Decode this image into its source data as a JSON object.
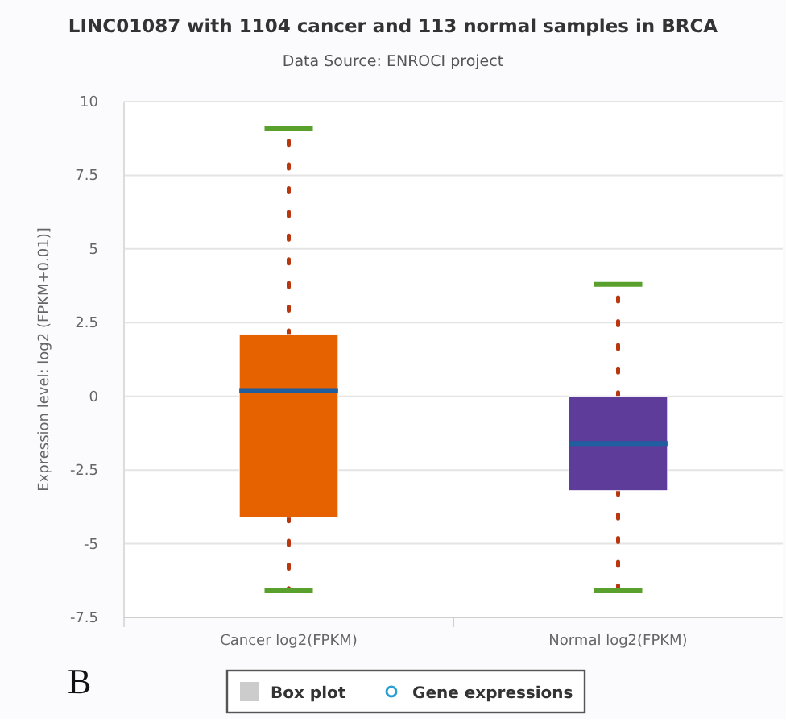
{
  "chart_data": {
    "type": "box",
    "title": "LINC01087 with 1104 cancer and 113 normal samples in BRCA",
    "subtitle": "Data Source: ENROCI project",
    "ylabel": "Expression level: log2 (FPKM+0.01)]",
    "categories": [
      "Cancer log2(FPKM)",
      "Normal log2(FPKM)"
    ],
    "ylim": [
      -7.5,
      10
    ],
    "yticks": [
      -7.5,
      -5,
      -2.5,
      0,
      2.5,
      5,
      7.5,
      10
    ],
    "grid": "y",
    "legend": "bottom",
    "annotations": [
      "B"
    ],
    "series": [
      {
        "name": "Box plot",
        "color": "#cccccc",
        "colors": [
          "#e66100",
          "#5e3c99"
        ],
        "boxes": [
          {
            "low": -6.6,
            "q1": -4.1,
            "median": 0.2,
            "q3": 2.1,
            "high": 9.1
          },
          {
            "low": -6.6,
            "q1": -3.2,
            "median": -1.6,
            "q3": 0,
            "high": 3.8
          }
        ]
      },
      {
        "name": "Gene expressions",
        "type": "scatter",
        "color": "#2a9fd6",
        "marker": "circle",
        "values": [
          null,
          null
        ]
      }
    ]
  }
}
